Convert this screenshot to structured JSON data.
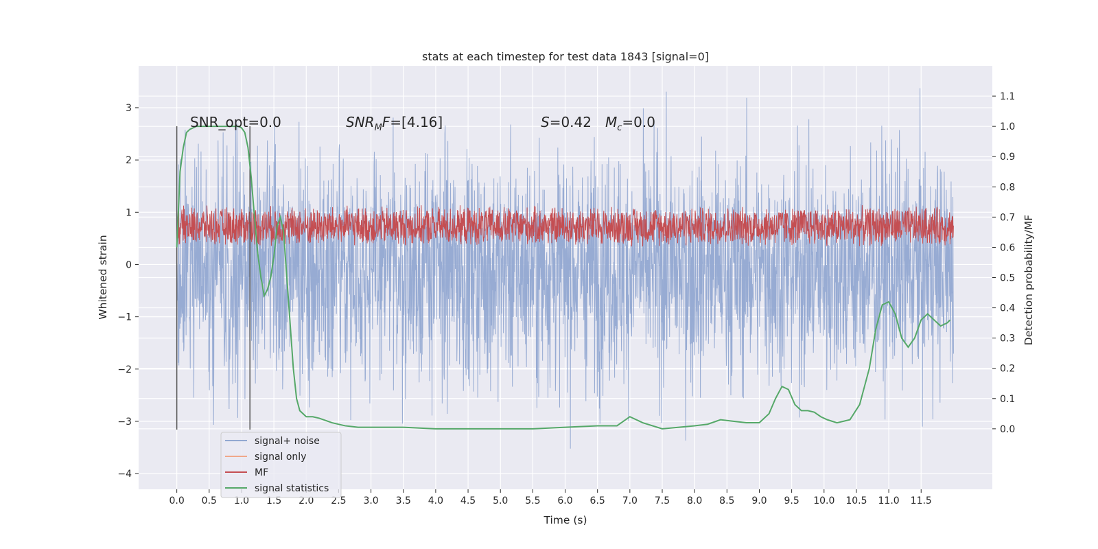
{
  "chart_data": {
    "type": "line",
    "title": "stats at each timestep for test data 1843 [signal=0]",
    "xlabel": "Time (s)",
    "ylabel_left": "Whitened strain",
    "ylabel_right": "Detection probability/MF",
    "xlim": [
      -0.59,
      12.6
    ],
    "ylim_left": [
      -4.3,
      3.8
    ],
    "ylim_right": [
      -0.2,
      1.2
    ],
    "x_ticks": [
      0.0,
      0.5,
      1.0,
      1.5,
      2.0,
      2.5,
      3.0,
      3.5,
      4.0,
      4.5,
      5.0,
      5.5,
      6.0,
      6.5,
      7.0,
      7.5,
      8.0,
      8.5,
      9.0,
      9.5,
      10.0,
      10.5,
      11.0,
      11.5
    ],
    "x_tick_labels": [
      "0.0",
      "0.5",
      "1.0",
      "1.5",
      "2.0",
      "2.5",
      "3.0",
      "3.5",
      "4.0",
      "4.5",
      "5.0",
      "5.5",
      "6.0",
      "6.5",
      "7.0",
      "7.5",
      "8.0",
      "8.5",
      "9.0",
      "9.5",
      "10.0",
      "10.5",
      "11.0",
      "11.5"
    ],
    "y_left_ticks": [
      -4,
      -3,
      -2,
      -1,
      0,
      1,
      2,
      3
    ],
    "y_left_tick_labels": [
      "−4",
      "−3",
      "−2",
      "−1",
      "0",
      "1",
      "2",
      "3"
    ],
    "y_right_ticks": [
      0.0,
      0.1,
      0.2,
      0.3,
      0.4,
      0.5,
      0.6,
      0.7,
      0.8,
      0.9,
      1.0,
      1.1
    ],
    "y_right_tick_labels": [
      "0.0",
      "0.1",
      "0.2",
      "0.3",
      "0.4",
      "0.5",
      "0.6",
      "0.7",
      "0.8",
      "0.9",
      "1.0",
      "1.1"
    ],
    "grid": true,
    "legend_placement": "lower-left",
    "annotations": {
      "snr_opt": "SNR_opt=0.0",
      "snr_mf": "SNR_MF=[4.16]",
      "s_value": "S=0.42",
      "mc_value": "M_c=0.0"
    },
    "vertical_markers_x": [
      0.0,
      1.13
    ],
    "series": [
      {
        "name": "signal+ noise",
        "axis": "left",
        "color": "#92a8d1",
        "x_range": [
          0.0,
          12.0
        ],
        "band_center": -0.1,
        "typical_amplitude": 1.5,
        "y_max": 3.5,
        "y_min": -4.1
      },
      {
        "name": "signal only",
        "axis": "left",
        "color": "#f0a88a",
        "x": [],
        "y": []
      },
      {
        "name": "MF",
        "axis": "right",
        "color": "#c44e52",
        "x_range": [
          0.0,
          12.0
        ],
        "band_min": 0.6,
        "band_max": 0.74
      },
      {
        "name": "signal statistics",
        "axis": "right",
        "color": "#55a868",
        "x": [
          0.0,
          0.05,
          0.1,
          0.15,
          0.2,
          0.3,
          0.5,
          0.8,
          0.95,
          1.0,
          1.05,
          1.1,
          1.15,
          1.2,
          1.25,
          1.3,
          1.35,
          1.4,
          1.45,
          1.5,
          1.55,
          1.6,
          1.65,
          1.7,
          1.75,
          1.8,
          1.85,
          1.9,
          2.0,
          2.1,
          2.2,
          2.4,
          2.6,
          2.8,
          3.0,
          3.5,
          4.0,
          4.5,
          5.0,
          5.5,
          6.0,
          6.5,
          6.8,
          7.0,
          7.2,
          7.5,
          8.0,
          8.2,
          8.4,
          8.6,
          8.8,
          9.0,
          9.15,
          9.25,
          9.35,
          9.45,
          9.55,
          9.65,
          9.75,
          9.85,
          9.95,
          10.05,
          10.2,
          10.4,
          10.55,
          10.7,
          10.8,
          10.9,
          11.0,
          11.1,
          11.2,
          11.3,
          11.4,
          11.5,
          11.6,
          11.7,
          11.8,
          11.9,
          11.95
        ],
        "y": [
          0.6,
          0.85,
          0.93,
          0.98,
          0.99,
          1.0,
          1.0,
          1.0,
          1.0,
          0.995,
          0.98,
          0.93,
          0.83,
          0.7,
          0.58,
          0.5,
          0.44,
          0.46,
          0.5,
          0.57,
          0.67,
          0.7,
          0.65,
          0.5,
          0.35,
          0.2,
          0.1,
          0.06,
          0.04,
          0.04,
          0.035,
          0.02,
          0.01,
          0.005,
          0.005,
          0.005,
          0.0,
          0.0,
          0.0,
          0.0,
          0.005,
          0.01,
          0.01,
          0.04,
          0.02,
          0.0,
          0.01,
          0.015,
          0.03,
          0.025,
          0.02,
          0.02,
          0.05,
          0.1,
          0.14,
          0.13,
          0.08,
          0.06,
          0.06,
          0.055,
          0.04,
          0.03,
          0.02,
          0.03,
          0.08,
          0.2,
          0.33,
          0.41,
          0.42,
          0.38,
          0.3,
          0.27,
          0.3,
          0.36,
          0.38,
          0.36,
          0.34,
          0.35,
          0.36
        ]
      }
    ]
  }
}
